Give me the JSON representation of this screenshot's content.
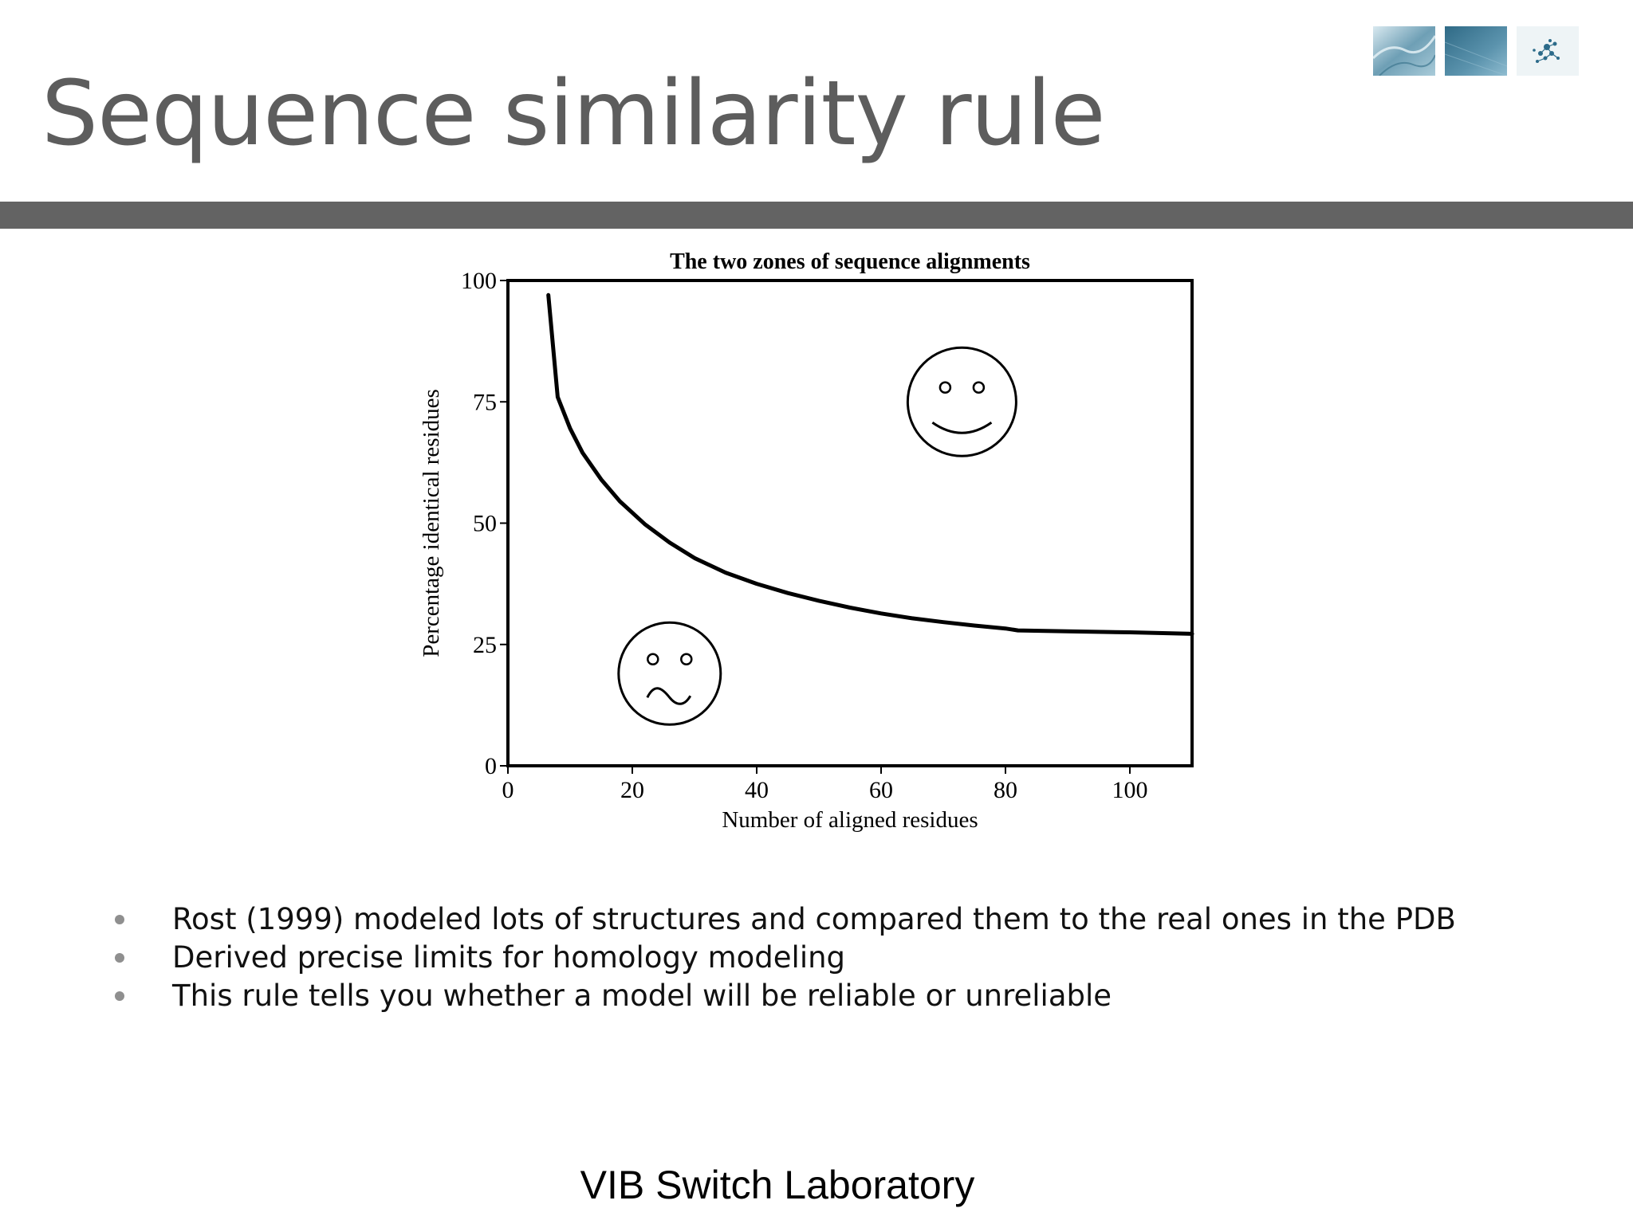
{
  "slide": {
    "title": "Sequence similarity rule",
    "footer": "VIB Switch Laboratory",
    "bullets": [
      "Rost (1999) modeled lots of structures and compared them to the real ones in the PDB",
      "Derived precise limits for homology modeling",
      "This rule tells you whether a model will be reliable or unreliable"
    ],
    "logo_thumbnails": [
      "blue-texture-image",
      "blue-gradient-image",
      "molecule-structure-image"
    ],
    "colors": {
      "title_text": "#5d5d5d",
      "title_bar": "#636363",
      "bullet_dot": "#8f8f8f"
    }
  },
  "chart_data": {
    "type": "line",
    "title": "The two zones of sequence alignments",
    "xlabel": "Number of aligned residues",
    "ylabel": "Percentage identical residues",
    "xlim": [
      0,
      110
    ],
    "ylim": [
      0,
      100
    ],
    "xticks": [
      0,
      20,
      40,
      60,
      80,
      100
    ],
    "yticks": [
      0,
      25,
      50,
      75,
      100
    ],
    "grid": false,
    "series": [
      {
        "x": [
          6.5,
          8,
          10,
          12,
          15,
          18,
          22,
          26,
          30,
          35,
          40,
          45,
          50,
          55,
          60,
          65,
          70,
          75,
          80,
          82,
          90,
          100,
          110
        ],
        "y": [
          97,
          76,
          69.5,
          64.5,
          59,
          54.5,
          49.8,
          46,
          42.8,
          39.8,
          37.5,
          35.6,
          34,
          32.6,
          31.4,
          30.4,
          29.6,
          28.9,
          28.3,
          27.9,
          27.7,
          27.5,
          27.2
        ]
      }
    ],
    "annotations": [
      {
        "type": "happy-face",
        "x": 73,
        "y": 75
      },
      {
        "type": "sad-face",
        "x": 26,
        "y": 19
      }
    ]
  }
}
